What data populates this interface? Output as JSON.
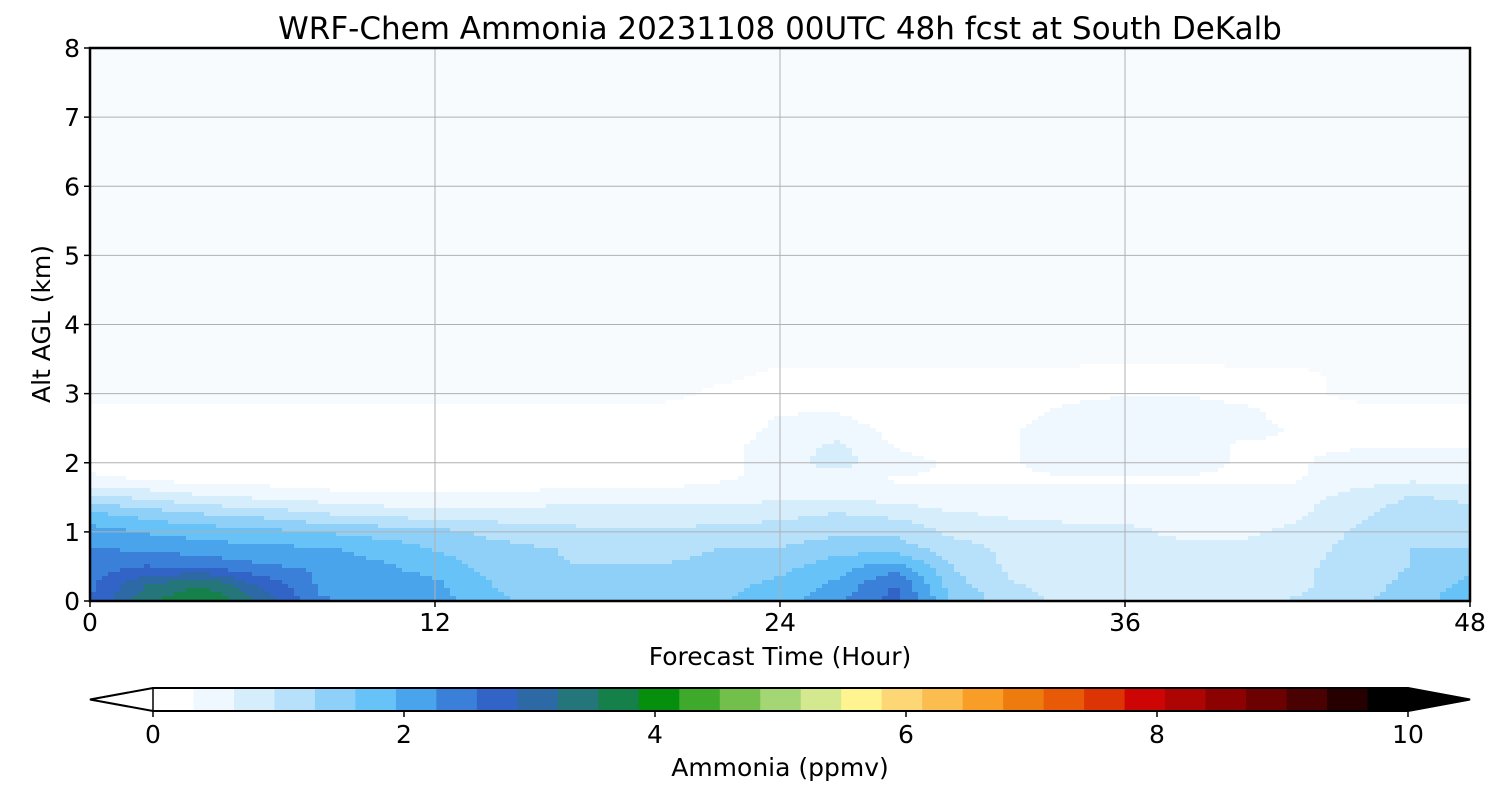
{
  "chart_data": {
    "type": "heatmap",
    "title": "WRF-Chem Ammonia  20231108 00UTC 48h fcst at South DeKalb",
    "xlabel": "Forecast Time (Hour)",
    "ylabel": "Alt AGL (km)",
    "xlim": [
      0,
      48
    ],
    "ylim": [
      0,
      8
    ],
    "xticks": [
      "0",
      "12",
      "24",
      "36",
      "48"
    ],
    "yticks": [
      "0",
      "1",
      "2",
      "3",
      "4",
      "5",
      "6",
      "7",
      "8"
    ],
    "grid": true,
    "x_hours": [
      0,
      2,
      4,
      6,
      8,
      10,
      12,
      14,
      16,
      18,
      20,
      22,
      24,
      26,
      28,
      30,
      32,
      34,
      36,
      38,
      40,
      42,
      44,
      46,
      48
    ],
    "z_km": [
      0,
      0.25,
      0.5,
      0.75,
      1.0,
      1.25,
      1.5,
      1.75,
      2.0,
      2.25,
      2.5,
      2.75,
      3.0,
      3.25,
      3.5,
      4.0,
      8.0
    ],
    "values_ppmv": [
      [
        2.6,
        3.5,
        3.9,
        3.2,
        2.3,
        2.1,
        2.1,
        1.7,
        1.5,
        1.5,
        1.5,
        1.6,
        1.8,
        2.2,
        2.7,
        1.6,
        1.1,
        0.9,
        0.9,
        0.9,
        0.9,
        1.0,
        1.2,
        1.5,
        1.8
      ],
      [
        2.5,
        3.2,
        3.5,
        2.8,
        2.2,
        2.1,
        2.0,
        1.6,
        1.4,
        1.4,
        1.4,
        1.5,
        1.7,
        2.0,
        2.6,
        1.4,
        1.0,
        0.8,
        0.8,
        0.8,
        0.8,
        0.9,
        1.1,
        1.4,
        1.7
      ],
      [
        2.4,
        2.6,
        2.5,
        2.3,
        2.2,
        2.0,
        1.8,
        1.5,
        1.3,
        1.3,
        1.3,
        1.4,
        1.5,
        1.8,
        2.1,
        1.3,
        0.9,
        0.8,
        0.7,
        0.7,
        0.7,
        0.9,
        1.1,
        1.3,
        1.5
      ],
      [
        2.3,
        2.2,
        2.1,
        2.0,
        2.0,
        1.8,
        1.6,
        1.4,
        1.3,
        1.2,
        1.2,
        1.3,
        1.3,
        1.5,
        1.5,
        1.1,
        0.9,
        0.8,
        0.7,
        0.7,
        0.7,
        0.8,
        1.1,
        1.3,
        1.3
      ],
      [
        2.1,
        1.9,
        1.8,
        1.7,
        1.6,
        1.5,
        1.4,
        1.2,
        1.1,
        1.0,
        1.0,
        1.1,
        1.1,
        1.2,
        1.2,
        0.9,
        0.8,
        0.7,
        0.7,
        0.6,
        0.6,
        0.7,
        1.0,
        1.2,
        1.2
      ],
      [
        1.7,
        1.5,
        1.3,
        1.2,
        1.0,
        0.9,
        0.8,
        0.8,
        0.8,
        0.8,
        0.8,
        0.8,
        0.9,
        1.0,
        0.9,
        0.7,
        0.6,
        0.6,
        0.6,
        0.5,
        0.5,
        0.6,
        0.9,
        1.1,
        1.1
      ],
      [
        1.1,
        0.9,
        0.7,
        0.6,
        0.5,
        0.4,
        0.4,
        0.4,
        0.5,
        0.5,
        0.5,
        0.5,
        0.6,
        0.6,
        0.5,
        0.4,
        0.4,
        0.4,
        0.4,
        0.4,
        0.4,
        0.5,
        0.8,
        1.0,
        0.9
      ],
      [
        0.4,
        0.3,
        0.2,
        0.2,
        0.1,
        0.1,
        0.1,
        0.1,
        0.1,
        0.1,
        0.2,
        0.3,
        0.4,
        0.4,
        0.3,
        0.3,
        0.3,
        0.3,
        0.3,
        0.3,
        0.3,
        0.3,
        0.5,
        0.6,
        0.6
      ],
      [
        0.2,
        0.2,
        0.2,
        0.2,
        0.2,
        0.2,
        0.2,
        0.1,
        0.1,
        0.1,
        0.1,
        0.2,
        0.5,
        0.8,
        0.4,
        0.3,
        0.3,
        0.4,
        0.4,
        0.4,
        0.3,
        0.3,
        0.4,
        0.4,
        0.4
      ],
      [
        0.1,
        0.2,
        0.2,
        0.2,
        0.2,
        0.2,
        0.2,
        0.2,
        0.1,
        0.1,
        0.1,
        0.2,
        0.5,
        0.7,
        0.3,
        0.2,
        0.3,
        0.4,
        0.4,
        0.4,
        0.3,
        0.3,
        0.3,
        0.3,
        0.3
      ],
      [
        0.1,
        0.1,
        0.2,
        0.2,
        0.2,
        0.2,
        0.2,
        0.1,
        0.1,
        0.1,
        0.1,
        0.1,
        0.4,
        0.5,
        0.2,
        0.2,
        0.3,
        0.4,
        0.5,
        0.5,
        0.4,
        0.3,
        0.2,
        0.2,
        0.2
      ],
      [
        0.1,
        0.1,
        0.1,
        0.1,
        0.1,
        0.1,
        0.1,
        0.1,
        0.1,
        0.1,
        0.1,
        0.1,
        0.3,
        0.3,
        0.1,
        0.1,
        0.2,
        0.4,
        0.5,
        0.5,
        0.4,
        0.2,
        0.1,
        0.1,
        0.1
      ],
      [
        0.0,
        0.0,
        0.0,
        0.0,
        0.0,
        0.0,
        0.0,
        0.0,
        0.0,
        0.0,
        0.0,
        0.1,
        0.2,
        0.2,
        0.1,
        0.1,
        0.2,
        0.2,
        0.3,
        0.3,
        0.2,
        0.1,
        0.0,
        0.0,
        0.0
      ],
      [
        0.0,
        0.0,
        0.0,
        0.0,
        0.0,
        0.0,
        0.0,
        0.0,
        0.0,
        0.0,
        0.0,
        0.0,
        0.1,
        0.1,
        0.1,
        0.1,
        0.1,
        0.1,
        0.2,
        0.2,
        0.1,
        0.1,
        0.0,
        0.0,
        0.0
      ],
      [
        0.0,
        0.0,
        0.0,
        0.0,
        0.0,
        0.0,
        0.0,
        0.0,
        0.0,
        0.0,
        0.0,
        0.0,
        0.0,
        0.0,
        0.0,
        0.0,
        0.0,
        0.0,
        0.0,
        0.0,
        0.0,
        0.0,
        0.0,
        0.0,
        0.0
      ],
      [
        0.0,
        0.0,
        0.0,
        0.0,
        0.0,
        0.0,
        0.0,
        0.0,
        0.0,
        0.0,
        0.0,
        0.0,
        0.0,
        0.0,
        0.0,
        0.0,
        0.0,
        0.0,
        0.0,
        0.0,
        0.0,
        0.0,
        0.0,
        0.0,
        0.0
      ],
      [
        0.0,
        0.0,
        0.0,
        0.0,
        0.0,
        0.0,
        0.0,
        0.0,
        0.0,
        0.0,
        0.0,
        0.0,
        0.0,
        0.0,
        0.0,
        0.0,
        0.0,
        0.0,
        0.0,
        0.0,
        0.0,
        0.0,
        0.0,
        0.0,
        0.0
      ]
    ],
    "colorbar": {
      "label": "Ammonia  (ppmv)",
      "ticks": [
        "0",
        "2",
        "4",
        "6",
        "8",
        "10"
      ],
      "range": [
        0,
        10
      ],
      "extend": "both",
      "colors": [
        "#ffffff",
        "#f0f8ff",
        "#d6edfc",
        "#b7e0fb",
        "#8fd0f8",
        "#66c2f7",
        "#4aa4ec",
        "#3a7fd8",
        "#3263c7",
        "#2d6aa5",
        "#24767a",
        "#158049",
        "#058f0c",
        "#3ea92a",
        "#72bf4c",
        "#a5d675",
        "#d4e890",
        "#fff48f",
        "#fdd676",
        "#fbbd4f",
        "#f89e26",
        "#ee7b0e",
        "#e85a08",
        "#dd3405",
        "#ce0505",
        "#ad0404",
        "#8c0202",
        "#6c0101",
        "#4a0101",
        "#260000",
        "#000000"
      ],
      "under_color": "#ffffff",
      "over_color": "#000000"
    }
  }
}
